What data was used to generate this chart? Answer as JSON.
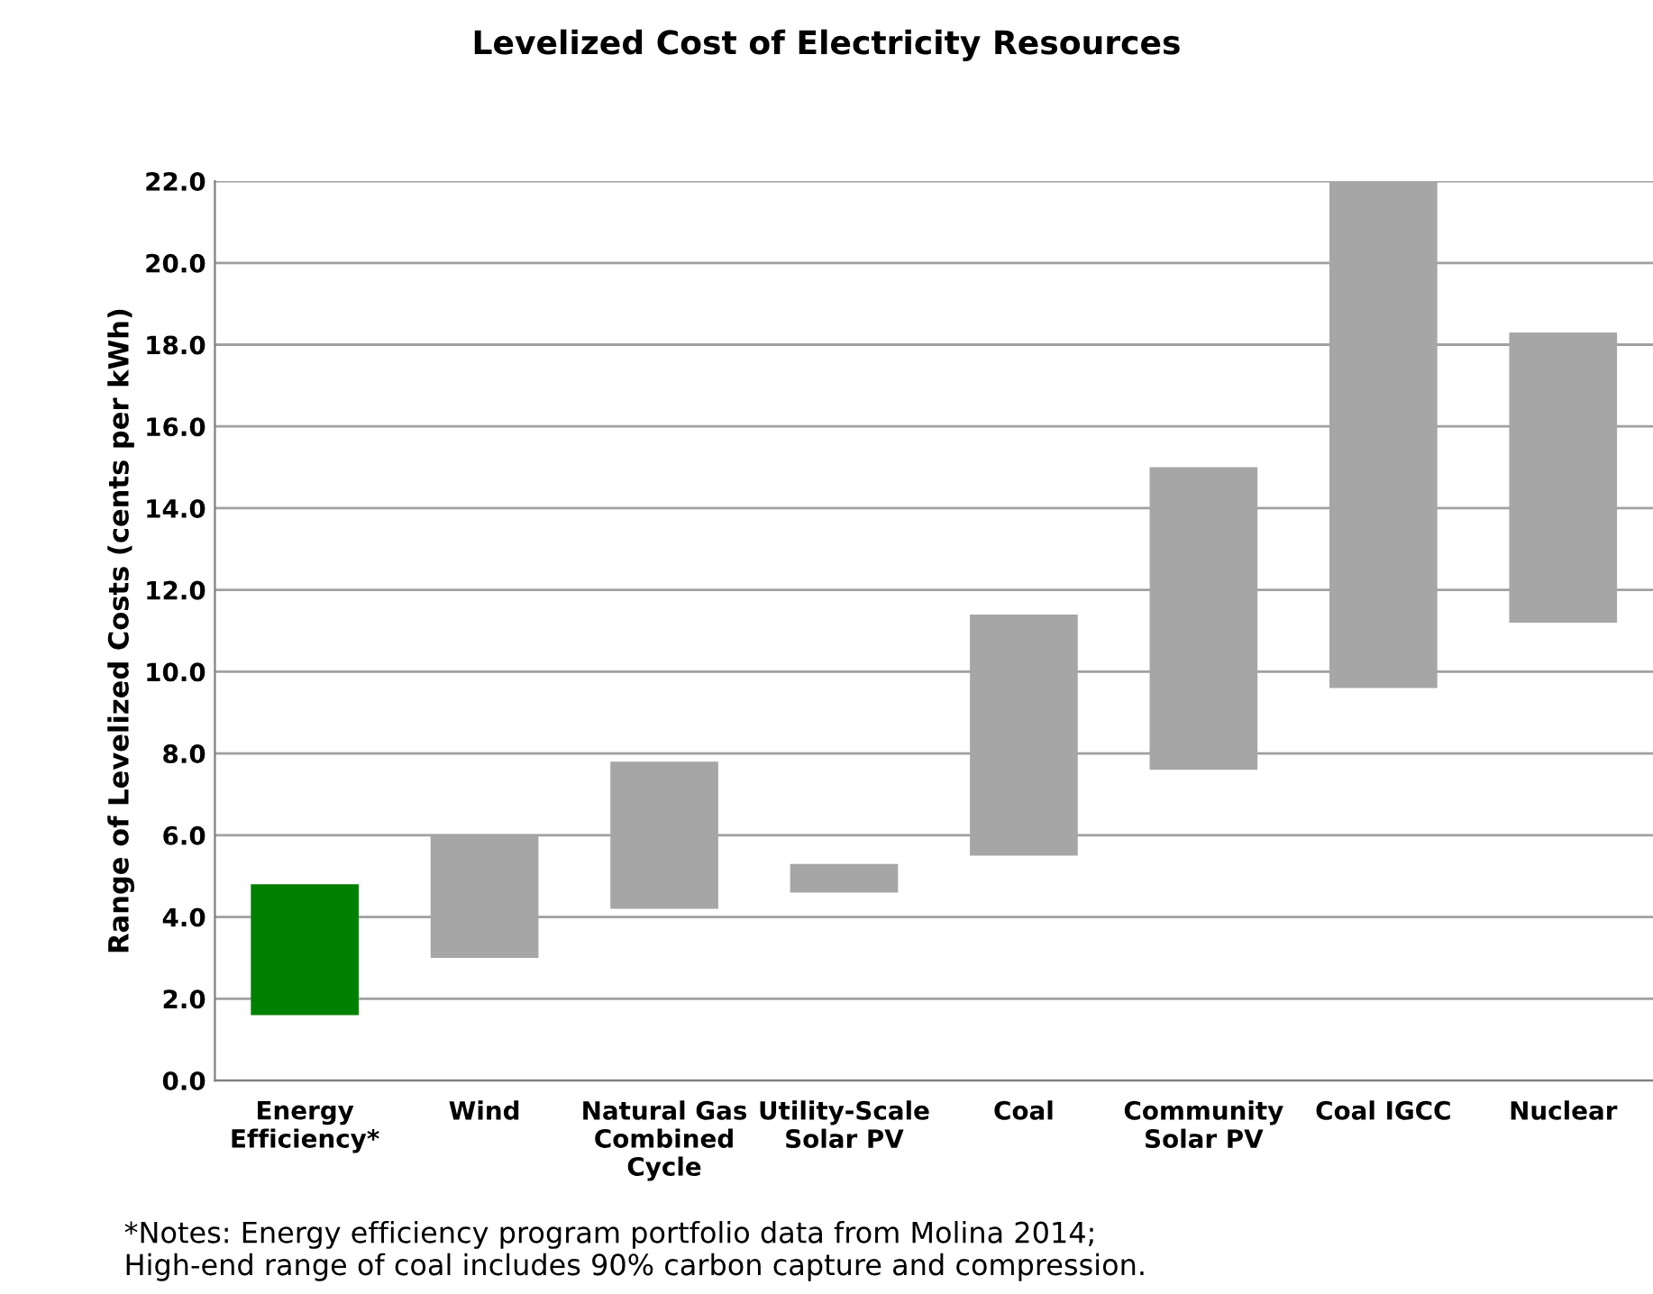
{
  "chart_data": {
    "type": "bar",
    "title": "Levelized Cost of Electricity Resources",
    "ylabel": "Range of Levelized Costs (cents per kWh)",
    "categories": [
      "Energy\nEfficiency*",
      "Wind",
      "Natural Gas\nCombined\nCycle",
      "Utility-Scale\nSolar PV",
      "Coal",
      "Community\nSolar PV",
      "Coal IGCC",
      "Nuclear"
    ],
    "base": [
      1.6,
      3.0,
      4.2,
      4.6,
      5.5,
      7.6,
      9.6,
      11.2
    ],
    "values": [
      3.2,
      3.0,
      3.6,
      0.7,
      5.9,
      7.4,
      12.4,
      7.1
    ],
    "colors": [
      "#008000",
      "#a6a6a6",
      "#a6a6a6",
      "#a6a6a6",
      "#a6a6a6",
      "#a6a6a6",
      "#a6a6a6",
      "#a6a6a6"
    ],
    "ylim": [
      0,
      22
    ],
    "yticks": [
      {
        "value": 0,
        "label": "0.0"
      },
      {
        "value": 2,
        "label": "2.0"
      },
      {
        "value": 4,
        "label": "4.0"
      },
      {
        "value": 6,
        "label": "6.0"
      },
      {
        "value": 8,
        "label": "8.0"
      },
      {
        "value": 10,
        "label": "10.0"
      },
      {
        "value": 12,
        "label": "12.0"
      },
      {
        "value": 14,
        "label": "14.0"
      },
      {
        "value": 16,
        "label": "16.0"
      },
      {
        "value": 18,
        "label": "18.0"
      },
      {
        "value": 20,
        "label": "20.0"
      },
      {
        "value": 22,
        "label": "22.0"
      }
    ],
    "grid": "y",
    "annotations": [
      "*Notes: Energy efficiency program portfolio data from Molina 2014;\nHigh-end range of coal includes 90% carbon capture and compression."
    ]
  }
}
